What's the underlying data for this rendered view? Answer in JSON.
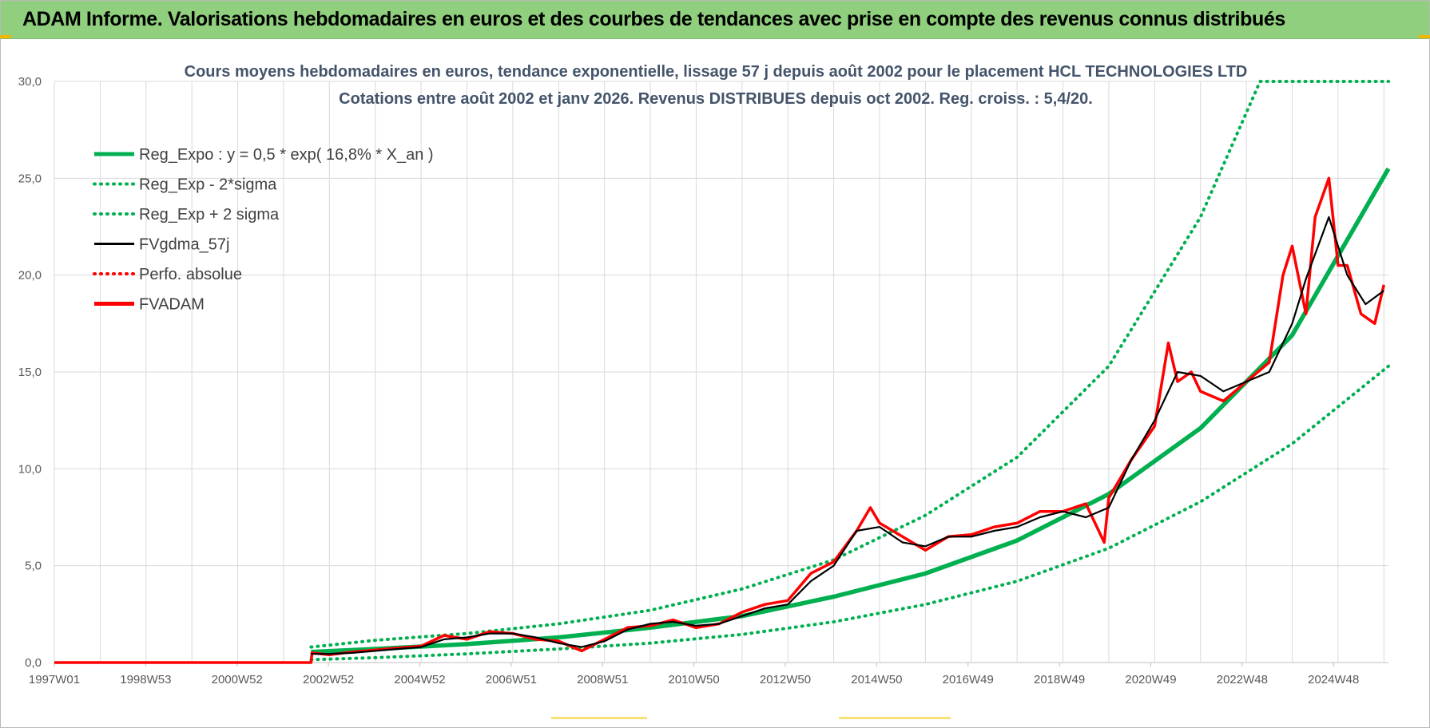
{
  "banner": {
    "title": "ADAM Informe. Valorisations hebdomadaires en euros et des courbes de tendances avec prise en compte des revenus connus distribués"
  },
  "colors": {
    "green": "#00b050",
    "red": "#ff0000",
    "black": "#000000",
    "banner": "#8fcf7d",
    "title": "#44546a",
    "grid": "#d9d9d9"
  },
  "chart_data": {
    "type": "line",
    "title_lines": [
      "Cours moyens hebdomadaires en euros, tendance exponentielle, lissage 57 j depuis août 2002 pour le placement HCL TECHNOLOGIES LTD",
      "Cotations entre août 2002 et janv 2026.  Revenus DISTRIBUES depuis oct 2002. Reg. croiss. : 5,4/20."
    ],
    "xlabel": "",
    "ylabel": "",
    "ylim": [
      0,
      30
    ],
    "y_ticks": [
      "0,0",
      "5,0",
      "10,0",
      "15,0",
      "20,0",
      "25,0",
      "30,0"
    ],
    "x_ticks": [
      "1997W01",
      "1998W53",
      "2000W52",
      "2002W52",
      "2004W52",
      "2006W51",
      "2008W51",
      "2010W50",
      "2012W50",
      "2014W50",
      "2016W49",
      "2018W49",
      "2020W49",
      "2022W48",
      "2024W48"
    ],
    "x_range_years": [
      1997.0,
      2026.1
    ],
    "grid": true,
    "legend_position": "top-left",
    "legend": [
      {
        "label": "Reg_Expo : y = 0,5 * exp( 16,8% *  X_an )",
        "color": "#00b050",
        "style": "solid-thick"
      },
      {
        "label": "Reg_Exp - 2*sigma",
        "color": "#00b050",
        "style": "dotted"
      },
      {
        "label": "Reg_Exp + 2 sigma",
        "color": "#00b050",
        "style": "dotted"
      },
      {
        "label": "FVgdma_57j",
        "color": "#000000",
        "style": "solid"
      },
      {
        "label": "Perfo. absolue",
        "color": "#ff0000",
        "style": "dotted"
      },
      {
        "label": "FVADAM",
        "color": "#ff0000",
        "style": "solid-thick"
      }
    ],
    "series": [
      {
        "name": "Reg_Expo : y = 0,5 * exp( 16,8% *  X_an )",
        "x": [
          2002.6,
          2004,
          2006,
          2008,
          2010,
          2012,
          2014,
          2016,
          2018,
          2020,
          2022,
          2024,
          2026.1
        ],
        "values": [
          0.55,
          0.7,
          0.95,
          1.3,
          1.8,
          2.4,
          3.4,
          4.6,
          6.3,
          8.7,
          12.1,
          16.9,
          25.5
        ]
      },
      {
        "name": "Reg_Exp - 2*sigma",
        "x": [
          2002.6,
          2004,
          2006,
          2008,
          2010,
          2012,
          2014,
          2016,
          2018,
          2020,
          2022,
          2024,
          2026.1
        ],
        "values": [
          0.15,
          0.25,
          0.45,
          0.7,
          1.0,
          1.45,
          2.1,
          3.0,
          4.2,
          5.9,
          8.3,
          11.3,
          15.3
        ]
      },
      {
        "name": "Reg_Exp + 2 sigma",
        "x": [
          2002.6,
          2004,
          2006,
          2008,
          2010,
          2012,
          2014,
          2016,
          2018,
          2020,
          2022,
          2023.3,
          2024,
          2026.1
        ],
        "values": [
          0.8,
          1.15,
          1.5,
          2.0,
          2.7,
          3.8,
          5.3,
          7.6,
          10.6,
          15.3,
          23.0,
          30.0,
          30.0,
          30.0
        ]
      },
      {
        "name": "FVgdma_57j",
        "x": [
          2002.6,
          2003,
          2003.5,
          2004,
          2004.5,
          2005,
          2005.5,
          2006,
          2006.5,
          2007,
          2007.5,
          2008,
          2008.5,
          2009,
          2009.5,
          2010,
          2010.5,
          2011,
          2011.5,
          2012,
          2012.5,
          2013,
          2013.5,
          2014,
          2014.5,
          2015,
          2015.5,
          2016,
          2016.5,
          2017,
          2017.5,
          2018,
          2018.5,
          2019,
          2019.5,
          2020,
          2020.5,
          2021,
          2021.5,
          2022,
          2022.5,
          2023,
          2023.5,
          2024,
          2024.3,
          2024.8,
          2025.2,
          2025.6,
          2026.0
        ],
        "values": [
          0.45,
          0.45,
          0.5,
          0.6,
          0.7,
          0.8,
          1.2,
          1.3,
          1.5,
          1.5,
          1.3,
          1.0,
          0.8,
          1.1,
          1.7,
          2.0,
          2.1,
          1.9,
          2.0,
          2.4,
          2.8,
          3.0,
          4.2,
          5.0,
          6.8,
          7.0,
          6.2,
          6.0,
          6.5,
          6.5,
          6.8,
          7.0,
          7.5,
          7.8,
          7.5,
          8.0,
          10.5,
          12.5,
          15.0,
          14.8,
          14.0,
          14.5,
          15.0,
          17.5,
          19.8,
          23.0,
          20.0,
          18.5,
          19.2
        ]
      },
      {
        "name": "FVADAM",
        "x": [
          1997.0,
          2002.6,
          2002.62,
          2003,
          2003.5,
          2004,
          2004.5,
          2005,
          2005.5,
          2006,
          2006.5,
          2007,
          2007.5,
          2008,
          2008.5,
          2009,
          2009.5,
          2010,
          2010.5,
          2011,
          2011.5,
          2012,
          2012.5,
          2013,
          2013.5,
          2014,
          2014.5,
          2014.8,
          2015,
          2015.5,
          2016,
          2016.5,
          2017,
          2017.5,
          2018,
          2018.5,
          2019,
          2019.5,
          2019.9,
          2020,
          2020.5,
          2021,
          2021.3,
          2021.5,
          2021.8,
          2022,
          2022.5,
          2023,
          2023.5,
          2023.8,
          2024,
          2024.3,
          2024.5,
          2024.8,
          2025.0,
          2025.2,
          2025.5,
          2025.8,
          2026.0
        ],
        "values": [
          0.0,
          0.0,
          0.5,
          0.4,
          0.55,
          0.65,
          0.75,
          0.85,
          1.4,
          1.2,
          1.6,
          1.5,
          1.2,
          1.1,
          0.6,
          1.2,
          1.8,
          1.9,
          2.2,
          1.8,
          2.0,
          2.6,
          3.0,
          3.2,
          4.6,
          5.2,
          6.8,
          8.0,
          7.2,
          6.5,
          5.8,
          6.5,
          6.6,
          7.0,
          7.2,
          7.8,
          7.8,
          8.2,
          6.2,
          8.5,
          10.5,
          12.2,
          16.5,
          14.5,
          15.0,
          14.0,
          13.5,
          14.5,
          15.5,
          20.0,
          21.5,
          18.0,
          23.0,
          25.0,
          20.5,
          20.5,
          18.0,
          17.5,
          19.5
        ]
      }
    ]
  }
}
